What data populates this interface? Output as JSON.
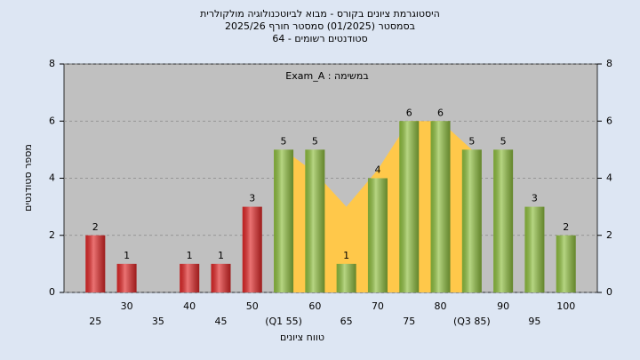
{
  "chart_data": {
    "type": "bar",
    "title": [
      "היסטוגרמת ציונים בקורס - מבוא לביוטכנולוגיה מולקולרית",
      "בסמסטר  (01/2025)  סמסטר חורף 2025/26",
      "סטודנטים רשומים - 64"
    ],
    "annotation": "Exam_A : במשימה",
    "x_label": "טווח ציונים",
    "y_label": "מספר סטודנטים",
    "categories": [
      "25",
      "30",
      "35",
      "40",
      "45",
      "50",
      "(Q1 55)",
      "60",
      "65",
      "70",
      "75",
      "80",
      "(Q3 85)",
      "90",
      "95",
      "100"
    ],
    "series": [
      {
        "values": [
          2,
          1,
          0,
          1,
          1,
          3,
          5,
          5,
          1,
          4,
          6,
          6,
          5,
          5,
          3,
          2
        ],
        "colors": [
          "#e02828",
          "#e02828",
          "#e02828",
          "#e02828",
          "#e02828",
          "#e02828",
          "#8fbf3f",
          "#8fbf3f",
          "#8fbf3f",
          "#8fbf3f",
          "#8fbf3f",
          "#8fbf3f",
          "#8fbf3f",
          "#8fbf3f",
          "#8fbf3f",
          "#8fbf3f"
        ]
      },
      {
        "type": "area",
        "color": "#ffc84a",
        "values": [
          null,
          null,
          null,
          null,
          null,
          null,
          5,
          4.2,
          3,
          4.3,
          6,
          6,
          5,
          null,
          null,
          null
        ]
      }
    ],
    "ylim": [
      0,
      8
    ],
    "yticks": [
      0,
      2,
      4,
      6,
      8
    ],
    "grid": true
  }
}
